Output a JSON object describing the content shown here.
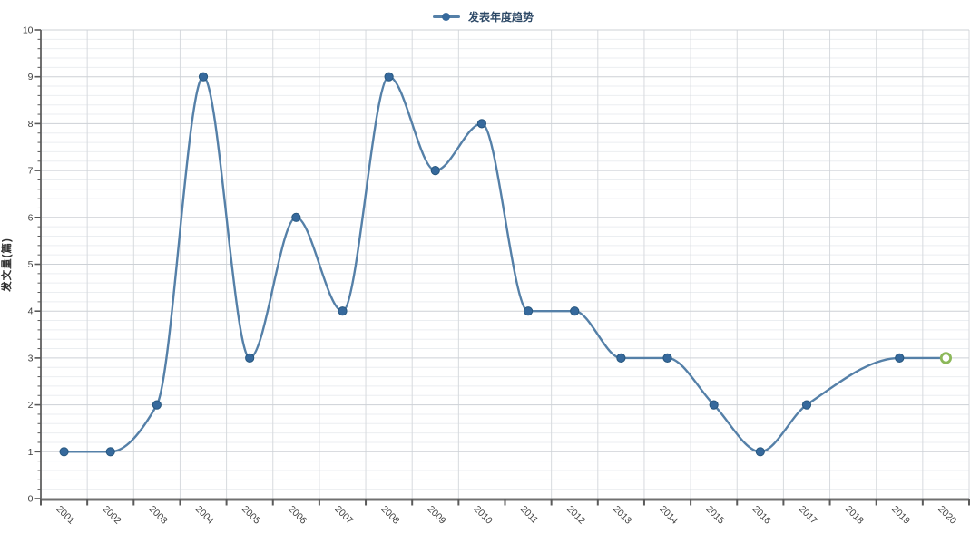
{
  "chart_data": {
    "type": "line",
    "title": "发表年度趋势",
    "xlabel": "",
    "ylabel": "发文量(篇)",
    "categories": [
      "2001",
      "2002",
      "2003",
      "2004",
      "2005",
      "2006",
      "2007",
      "2008",
      "2009",
      "2010",
      "2011",
      "2012",
      "2013",
      "2014",
      "2015",
      "2016",
      "2017",
      "2018",
      "2019",
      "2020"
    ],
    "series": [
      {
        "name": "发表年度趋势",
        "values": [
          1,
          1,
          2,
          9,
          3,
          6,
          4,
          9,
          7,
          8,
          4,
          4,
          3,
          3,
          2,
          1,
          2,
          null,
          3,
          3
        ],
        "marker": "filled-circle",
        "last_point_marker": "open-circle"
      }
    ],
    "ylim": [
      0,
      10
    ],
    "y_major_step": 1,
    "y_minor_step": 0.2,
    "grid": true,
    "smooth": true,
    "legend_position": "top-center",
    "x_labels_rotation_deg": 45,
    "colors": {
      "line": "#5580a8",
      "marker": "#36699c",
      "marker_edge": "#27577f",
      "last_marker": "#8cb85a",
      "grid_major": "#cdd1d6",
      "grid_minor": "#ebeef1",
      "grid_vertical": "#d7dade",
      "axis": "#707070",
      "tick": "#5a5a5a",
      "tick_label": "#3f3f3f",
      "legend_text": "#2c4866"
    }
  }
}
